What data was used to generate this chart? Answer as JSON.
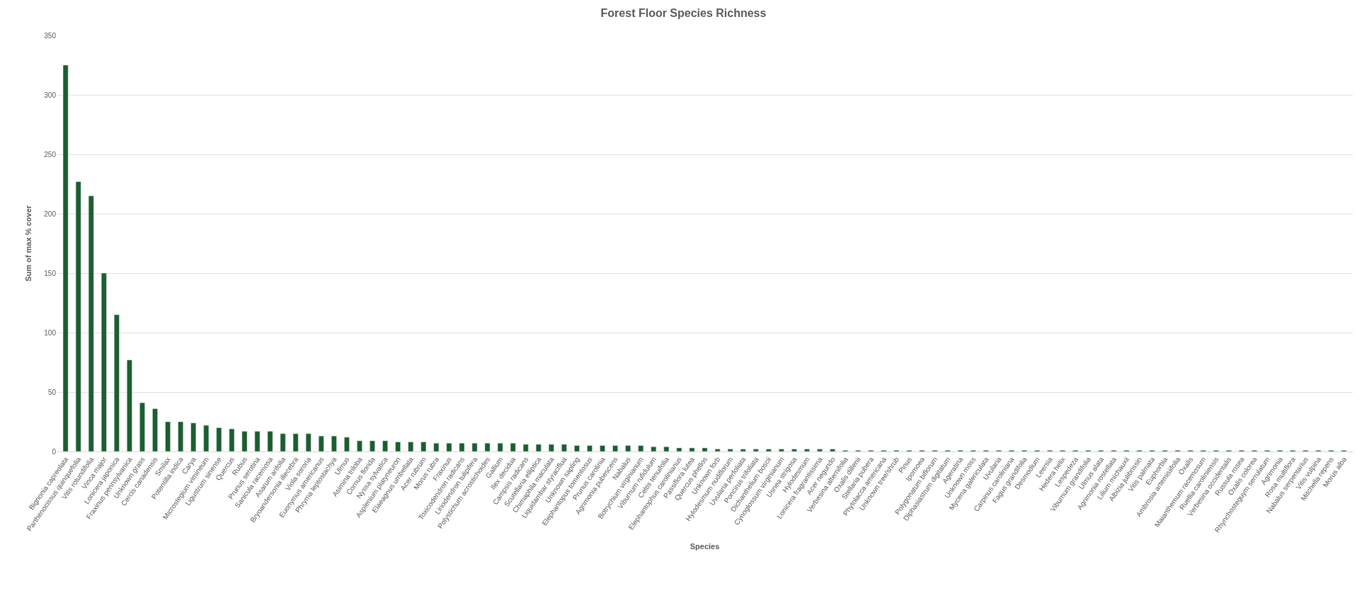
{
  "chart_data": {
    "type": "bar",
    "title": "Forest Floor Species Richness",
    "xlabel": "Species",
    "ylabel": "Sum of max % cover",
    "categories": [
      "Bignonia capreolata",
      "Parthenocissus quinquefolia",
      "Vitis rotundifolia",
      "Vinca major",
      "Lonicera japonica",
      "Fraxinus pennsylvanica",
      "Unknown grass",
      "Cercis canadensis",
      "Smilax",
      "Potentilla indica",
      "Carya",
      "Microstegium vimineum",
      "Ligustrum sinense",
      "Quercus",
      "Rubus",
      "Prunus serotina",
      "Sanicula racemosa",
      "Asarum arifolia",
      "Bryoandersonia illecebra",
      "Viola sororia",
      "Euonymus americanus",
      "Phryma leptostachya",
      "Ulmus",
      "Asimina triloba",
      "Cornus florida",
      "Nyssa sylvatica",
      "Asplenium platyneuron",
      "Elaeagnus umbellata",
      "Acer rubrum",
      "Morus rubra",
      "Fraxinus",
      "Toxicodendron radicans",
      "Liriodendron tulipifera",
      "Polystichum acrostichoides",
      "Gallium",
      "Ilex decidua",
      "Campsis radicans",
      "Scutellaria elliptica",
      "Chimaphila maculata",
      "Liquidambar styraciflua",
      "Unknown sapling",
      "Elephantopus tomentosus",
      "Prunus carolinia",
      "Agrimonia pubescens",
      "Nabalus",
      "Botrychium virginianum",
      "Viburnum rufidulum",
      "Celtis tenuifolia",
      "Elephantophus carolinianus",
      "Passiflora lutea",
      "Quercus phellos",
      "Unknown forb",
      "Hylodesmum nudiflorum",
      "Uvularia perfoliata",
      "Poncirus trifoliata",
      "Dichanthelium boscii",
      "Cynoglossum virginianum",
      "Usnea strigosa",
      "Hylodesmum",
      "Lonicera fragrantissima",
      "Acer negundo",
      "Verbesina alternifolia",
      "Oxalis dillenii",
      "Stellaria pubera",
      "Phytolacca americana",
      "Unknown tree/shrub",
      "Pinus",
      "Ipomoea",
      "Polygonatum biflorum",
      "Diphasiastrum digitatum",
      "Ageratina",
      "Unknown moss",
      "Mycena galericulata",
      "Uvularia",
      "Carpinus caroliniana",
      "Fagus grandifolia",
      "Desmodium",
      "Leersia",
      "Hedera helix",
      "Lespedeza",
      "Viburnum grandifolia",
      "Ulmus alata",
      "Agrimonia rostellata",
      "Lilium michauxii",
      "Albizia julibrissin",
      "Vitis palmata",
      "Euphorbia",
      "Ambrosia artemisiifolia",
      "Oxalis",
      "Maianthemum racemosum",
      "Ruellia caroliniensis",
      "Verbesina occidentalis",
      "Russula rosea",
      "Oxalis colorea",
      "Rhynchosteguym serrulatum",
      "Agrimonia",
      "Rosa multiflora",
      "Nabalus serpentarius",
      "Vitis vulpina",
      "Mitchella repens",
      "Morus alba"
    ],
    "values": [
      325,
      227,
      215,
      150,
      115,
      77,
      41,
      36,
      25,
      25,
      24,
      22,
      20,
      19,
      17,
      17,
      17,
      15,
      15,
      15,
      13,
      13,
      12,
      9,
      9,
      9,
      8,
      8,
      8,
      7,
      7,
      7,
      7,
      7,
      7,
      7,
      6,
      6,
      6,
      6,
      5,
      5,
      5,
      5,
      5,
      5,
      4,
      4,
      3,
      3,
      3,
      2,
      2,
      2,
      2,
      2,
      2,
      2,
      2,
      2,
      2,
      1,
      1,
      1,
      1,
      1,
      1,
      1,
      1,
      1,
      1,
      1,
      1,
      1,
      1,
      1,
      1,
      1,
      1,
      1,
      1,
      1,
      1,
      1,
      1,
      1,
      1,
      1,
      1,
      1,
      1,
      1,
      1,
      1,
      1,
      1,
      1,
      1,
      1,
      1,
      1
    ],
    "color": "#1b5e2f",
    "ylim": [
      0,
      350
    ],
    "yticks": [
      0,
      50,
      100,
      150,
      200,
      250,
      300,
      350
    ],
    "grid": "y",
    "legend": false
  }
}
